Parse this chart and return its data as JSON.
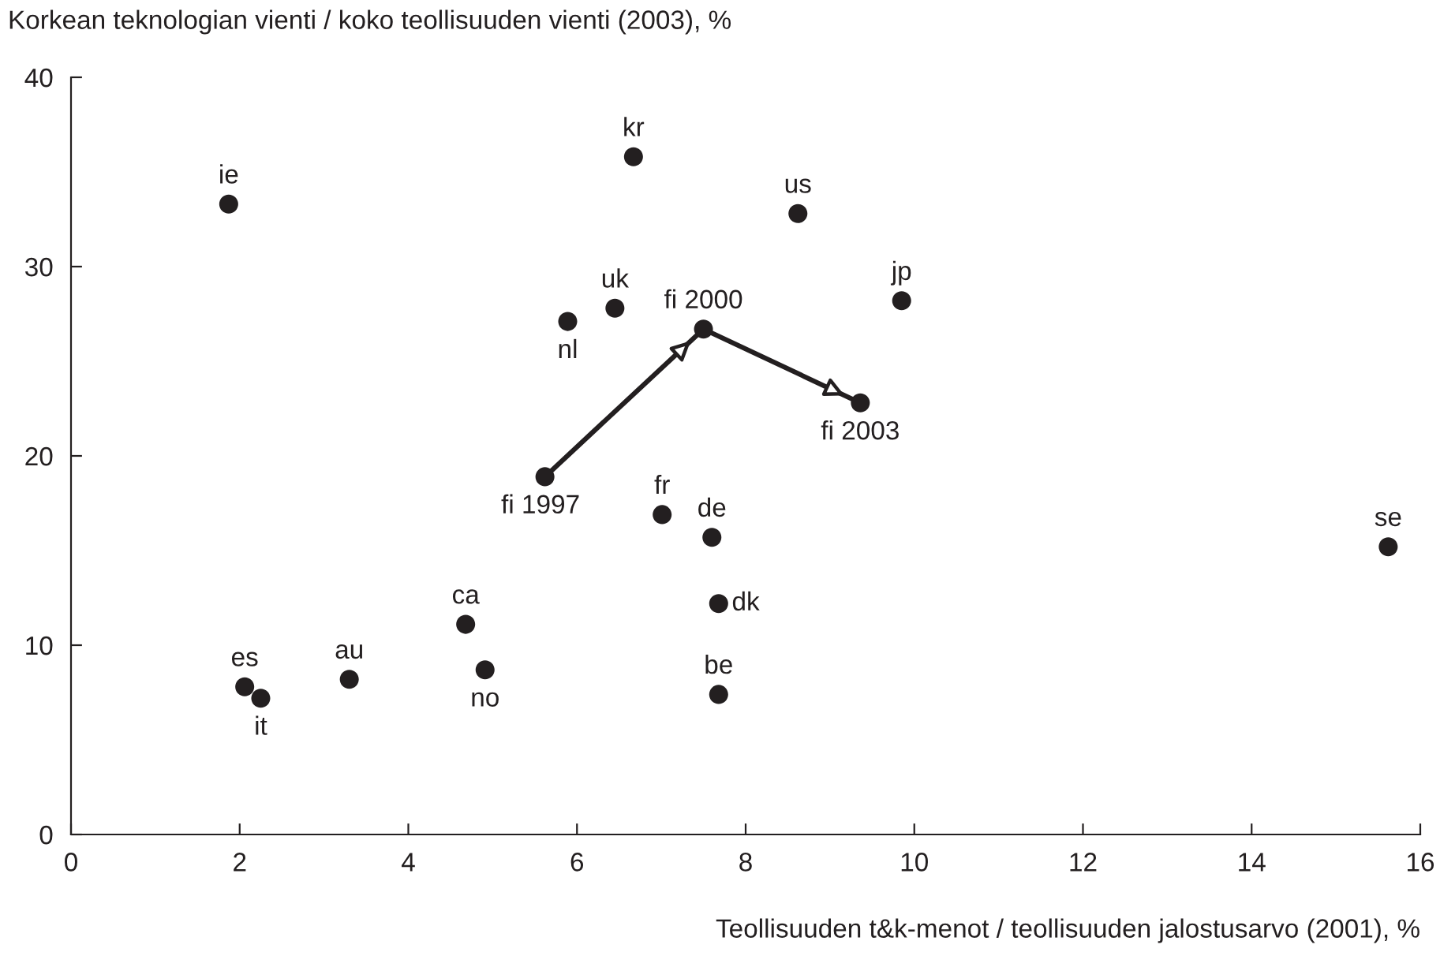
{
  "chart_data": {
    "type": "scatter",
    "ylabel": "Korkean teknologian vienti / koko teollisuuden vienti (2003), %",
    "xlabel": "Teollisuuden t&k-menot / teollisuuden jalostusarvo (2001), %",
    "xlim": [
      0,
      16
    ],
    "xticks": [
      0,
      2,
      4,
      6,
      8,
      10,
      12,
      14,
      16
    ],
    "ylim": [
      0,
      40
    ],
    "yticks": [
      0,
      10,
      20,
      30,
      40
    ],
    "grid": false,
    "legend": false,
    "series": [
      {
        "color": "#231f20",
        "marker": "circle",
        "x": [
          1.87,
          6.67,
          8.62,
          9.85,
          6.45,
          5.89,
          7.5,
          9.36,
          5.62,
          7.01,
          7.6,
          7.68,
          4.68,
          4.91,
          7.68,
          2.06,
          2.25,
          3.3,
          15.62
        ],
        "values": [
          33.3,
          35.8,
          32.8,
          28.2,
          27.8,
          27.1,
          26.7,
          22.8,
          18.9,
          16.9,
          15.7,
          12.2,
          11.1,
          8.7,
          7.4,
          7.8,
          7.2,
          8.2,
          15.2
        ]
      },
      {
        "type": "line",
        "color": "#231f20",
        "x": [
          5.62,
          7.5,
          9.36
        ],
        "values": [
          18.9,
          26.7,
          22.8
        ],
        "line_style": "solid"
      }
    ],
    "annotations": [
      {
        "text": "ie",
        "x": 1.87,
        "y": 33.3
      },
      {
        "text": "kr",
        "x": 6.67,
        "y": 35.8
      },
      {
        "text": "us",
        "x": 8.62,
        "y": 32.8
      },
      {
        "text": "jp",
        "x": 9.85,
        "y": 28.2
      },
      {
        "text": "uk",
        "x": 6.45,
        "y": 27.8
      },
      {
        "text": "nl",
        "x": 5.89,
        "y": 27.1
      },
      {
        "text": "fi 2000",
        "x": 7.5,
        "y": 26.7
      },
      {
        "text": "fi 2003",
        "x": 9.36,
        "y": 22.8
      },
      {
        "text": "fi 1997",
        "x": 5.62,
        "y": 18.9
      },
      {
        "text": "fr",
        "x": 7.01,
        "y": 16.9
      },
      {
        "text": "de",
        "x": 7.6,
        "y": 15.7
      },
      {
        "text": "dk",
        "x": 7.68,
        "y": 12.2
      },
      {
        "text": "ca",
        "x": 4.68,
        "y": 11.1
      },
      {
        "text": "no",
        "x": 4.91,
        "y": 8.7
      },
      {
        "text": "be",
        "x": 7.68,
        "y": 7.4
      },
      {
        "text": "es",
        "x": 2.06,
        "y": 7.8
      },
      {
        "text": "it",
        "x": 2.25,
        "y": 7.2
      },
      {
        "text": "au",
        "x": 3.3,
        "y": 8.2
      },
      {
        "text": "se",
        "x": 15.62,
        "y": 15.2
      }
    ]
  }
}
